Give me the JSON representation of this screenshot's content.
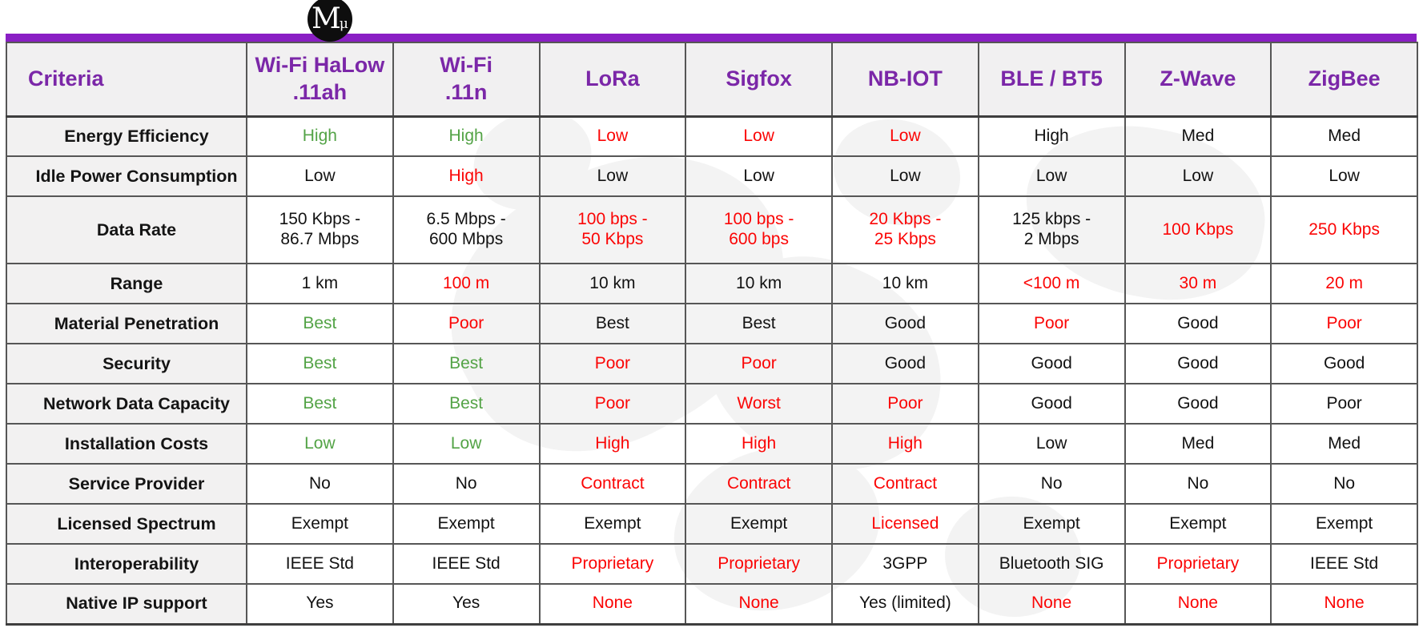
{
  "logo": {
    "symbol": "M",
    "subscript": "μ",
    "bg_color": "#0e0e0e",
    "fg_color": "#ffffff"
  },
  "accent_bar_color": "#8a1fc4",
  "palette": {
    "header_text": "#7b27a8",
    "good_green": "#53a346",
    "bad_red": "#fb0505",
    "neutral_black": "#121212",
    "grid_border": "#565656",
    "header_bg": "#f1f0f1"
  },
  "table": {
    "criteria_header": "Criteria",
    "columns": [
      "Wi-Fi HaLow\n.11ah",
      "Wi-Fi\n.11n",
      "LoRa",
      "Sigfox",
      "NB-IOT",
      "BLE / BT5",
      "Z-Wave",
      "ZigBee"
    ],
    "rows": [
      {
        "label": "Energy Efficiency",
        "tall": false,
        "cells": [
          {
            "t": "High",
            "c": "green"
          },
          {
            "t": "High",
            "c": "green"
          },
          {
            "t": "Low",
            "c": "red"
          },
          {
            "t": "Low",
            "c": "red"
          },
          {
            "t": "Low",
            "c": "red"
          },
          {
            "t": "High",
            "c": "black"
          },
          {
            "t": "Med",
            "c": "black"
          },
          {
            "t": "Med",
            "c": "black"
          }
        ]
      },
      {
        "label": "Idle Power Consumption",
        "tall": false,
        "cells": [
          {
            "t": "Low",
            "c": "black"
          },
          {
            "t": "High",
            "c": "red"
          },
          {
            "t": "Low",
            "c": "black"
          },
          {
            "t": "Low",
            "c": "black"
          },
          {
            "t": "Low",
            "c": "black"
          },
          {
            "t": "Low",
            "c": "black"
          },
          {
            "t": "Low",
            "c": "black"
          },
          {
            "t": "Low",
            "c": "black"
          }
        ]
      },
      {
        "label": "Data Rate",
        "tall": true,
        "cells": [
          {
            "t": "150 Kbps -\n86.7 Mbps",
            "c": "black"
          },
          {
            "t": "6.5 Mbps -\n600 Mbps",
            "c": "black"
          },
          {
            "t": "100 bps -\n50 Kbps",
            "c": "red"
          },
          {
            "t": "100 bps -\n600 bps",
            "c": "red"
          },
          {
            "t": "20 Kbps -\n25 Kbps",
            "c": "red"
          },
          {
            "t": "125 kbps -\n2 Mbps",
            "c": "black"
          },
          {
            "t": "100 Kbps",
            "c": "red"
          },
          {
            "t": "250 Kbps",
            "c": "red"
          }
        ]
      },
      {
        "label": "Range",
        "tall": false,
        "cells": [
          {
            "t": "1 km",
            "c": "black"
          },
          {
            "t": "100 m",
            "c": "red"
          },
          {
            "t": "10 km",
            "c": "black"
          },
          {
            "t": "10 km",
            "c": "black"
          },
          {
            "t": "10 km",
            "c": "black"
          },
          {
            "t": "<100 m",
            "c": "red"
          },
          {
            "t": "30 m",
            "c": "red"
          },
          {
            "t": "20 m",
            "c": "red"
          }
        ]
      },
      {
        "label": "Material Penetration",
        "tall": false,
        "cells": [
          {
            "t": "Best",
            "c": "green"
          },
          {
            "t": "Poor",
            "c": "red"
          },
          {
            "t": "Best",
            "c": "black"
          },
          {
            "t": "Best",
            "c": "black"
          },
          {
            "t": "Good",
            "c": "black"
          },
          {
            "t": "Poor",
            "c": "red"
          },
          {
            "t": "Good",
            "c": "black"
          },
          {
            "t": "Poor",
            "c": "red"
          }
        ]
      },
      {
        "label": "Security",
        "tall": false,
        "cells": [
          {
            "t": "Best",
            "c": "green"
          },
          {
            "t": "Best",
            "c": "green"
          },
          {
            "t": "Poor",
            "c": "red"
          },
          {
            "t": "Poor",
            "c": "red"
          },
          {
            "t": "Good",
            "c": "black"
          },
          {
            "t": "Good",
            "c": "black"
          },
          {
            "t": "Good",
            "c": "black"
          },
          {
            "t": "Good",
            "c": "black"
          }
        ]
      },
      {
        "label": "Network Data Capacity",
        "tall": false,
        "cells": [
          {
            "t": "Best",
            "c": "green"
          },
          {
            "t": "Best",
            "c": "green"
          },
          {
            "t": "Poor",
            "c": "red"
          },
          {
            "t": "Worst",
            "c": "red"
          },
          {
            "t": "Poor",
            "c": "red"
          },
          {
            "t": "Good",
            "c": "black"
          },
          {
            "t": "Good",
            "c": "black"
          },
          {
            "t": "Poor",
            "c": "black"
          }
        ]
      },
      {
        "label": "Installation Costs",
        "tall": false,
        "cells": [
          {
            "t": "Low",
            "c": "green"
          },
          {
            "t": "Low",
            "c": "green"
          },
          {
            "t": "High",
            "c": "red"
          },
          {
            "t": "High",
            "c": "red"
          },
          {
            "t": "High",
            "c": "red"
          },
          {
            "t": "Low",
            "c": "black"
          },
          {
            "t": "Med",
            "c": "black"
          },
          {
            "t": "Med",
            "c": "black"
          }
        ]
      },
      {
        "label": "Service Provider",
        "tall": false,
        "cells": [
          {
            "t": "No",
            "c": "black"
          },
          {
            "t": "No",
            "c": "black"
          },
          {
            "t": "Contract",
            "c": "red"
          },
          {
            "t": "Contract",
            "c": "red"
          },
          {
            "t": "Contract",
            "c": "red"
          },
          {
            "t": "No",
            "c": "black"
          },
          {
            "t": "No",
            "c": "black"
          },
          {
            "t": "No",
            "c": "black"
          }
        ]
      },
      {
        "label": "Licensed Spectrum",
        "tall": false,
        "cells": [
          {
            "t": "Exempt",
            "c": "black"
          },
          {
            "t": "Exempt",
            "c": "black"
          },
          {
            "t": "Exempt",
            "c": "black"
          },
          {
            "t": "Exempt",
            "c": "black"
          },
          {
            "t": "Licensed",
            "c": "red"
          },
          {
            "t": "Exempt",
            "c": "black"
          },
          {
            "t": "Exempt",
            "c": "black"
          },
          {
            "t": "Exempt",
            "c": "black"
          }
        ]
      },
      {
        "label": "Interoperability",
        "tall": false,
        "cells": [
          {
            "t": "IEEE Std",
            "c": "black"
          },
          {
            "t": "IEEE Std",
            "c": "black"
          },
          {
            "t": "Proprietary",
            "c": "red"
          },
          {
            "t": "Proprietary",
            "c": "red"
          },
          {
            "t": "3GPP",
            "c": "black"
          },
          {
            "t": "Bluetooth SIG",
            "c": "black"
          },
          {
            "t": "Proprietary",
            "c": "red"
          },
          {
            "t": "IEEE Std",
            "c": "black"
          }
        ]
      },
      {
        "label": "Native IP support",
        "tall": false,
        "cells": [
          {
            "t": "Yes",
            "c": "black"
          },
          {
            "t": "Yes",
            "c": "black"
          },
          {
            "t": "None",
            "c": "red"
          },
          {
            "t": "None",
            "c": "red"
          },
          {
            "t": "Yes (limited)",
            "c": "black"
          },
          {
            "t": "None",
            "c": "red"
          },
          {
            "t": "None",
            "c": "red"
          },
          {
            "t": "None",
            "c": "red"
          }
        ]
      }
    ]
  }
}
